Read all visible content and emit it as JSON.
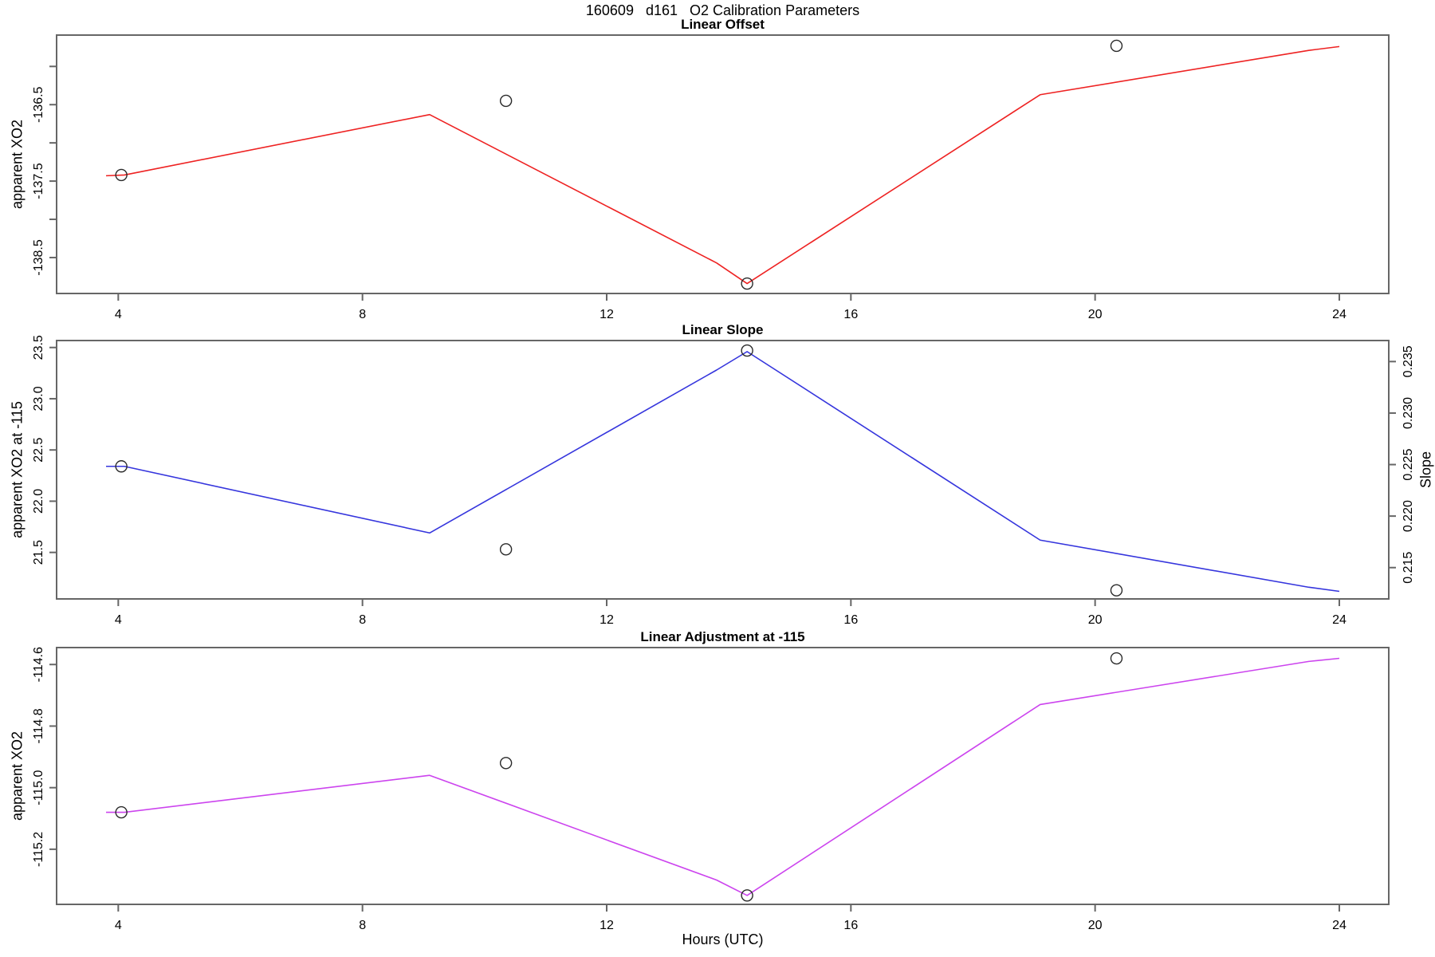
{
  "header": {
    "title": "160609   d161   O2 Calibration Parameters"
  },
  "xaxis": {
    "label": "Hours (UTC)",
    "xlim": [
      2.99,
      24.81
    ],
    "ticks": [
      4,
      8,
      12,
      16,
      20,
      24
    ],
    "tick_labels": [
      "4",
      "8",
      "12",
      "16",
      "20",
      "24"
    ]
  },
  "style": {
    "box_color": "#666666",
    "tick_color": "#666666",
    "point_color": "#2a2a2a",
    "text_color": "#000000"
  },
  "chart_data": [
    {
      "type": "line",
      "title": "Linear Offset",
      "ylabel": "apparent XO2",
      "color": "#ee2222",
      "ylim": [
        -138.97,
        -135.59
      ],
      "ytick_values": [
        -136.0,
        -136.5,
        -137.0,
        -137.5,
        -138.0,
        -138.5
      ],
      "ytick_labels": [
        "",
        "-136.5",
        "",
        "-137.5",
        "",
        "-138.5"
      ],
      "line": {
        "x": [
          3.8,
          4.1,
          9.1,
          13.8,
          14.3,
          19.1,
          23.5,
          24.0
        ],
        "y": [
          -137.43,
          -137.42,
          -136.63,
          -138.57,
          -138.84,
          -136.37,
          -135.79,
          -135.74
        ]
      },
      "points": {
        "x": [
          4.05,
          10.35,
          14.3,
          20.35
        ],
        "y": [
          -137.42,
          -136.45,
          -138.84,
          -135.73
        ]
      }
    },
    {
      "type": "line",
      "title": "Linear Slope",
      "ylabel": "apparent XO2 at -115",
      "ylabel_right": "Slope",
      "color": "#3535dd",
      "ylim": [
        21.046,
        23.568
      ],
      "ytick_values": [
        21.5,
        22.0,
        22.5,
        23.0,
        23.5
      ],
      "ytick_labels": [
        "21.5",
        "22.0",
        "22.5",
        "23.0",
        "23.5"
      ],
      "right_axis": {
        "ylim": [
          0.21196,
          0.23704
        ],
        "ytick_values": [
          0.215,
          0.22,
          0.225,
          0.23,
          0.235
        ],
        "ytick_labels": [
          "0.215",
          "0.220",
          "0.225",
          "0.230",
          "0.235"
        ]
      },
      "line": {
        "x": [
          3.8,
          4.1,
          9.1,
          13.8,
          14.3,
          19.1,
          23.5,
          24.0
        ],
        "y": [
          22.34,
          22.34,
          21.69,
          23.28,
          23.46,
          21.62,
          21.16,
          21.12
        ]
      },
      "points": {
        "x": [
          4.05,
          10.35,
          14.3,
          20.35
        ],
        "y": [
          22.34,
          21.53,
          23.47,
          21.13
        ]
      }
    },
    {
      "type": "line",
      "title": "Linear Adjustment at -115",
      "ylabel": "apparent XO2",
      "color": "#cc44ee",
      "ylim": [
        -115.379,
        -114.545
      ],
      "ytick_values": [
        -115.2,
        -115.0,
        -114.8,
        -114.6
      ],
      "ytick_labels": [
        "-115.2",
        "-115.0",
        "-114.8",
        "-114.6"
      ],
      "line": {
        "x": [
          3.8,
          4.1,
          9.1,
          13.8,
          14.3,
          19.1,
          23.5,
          24.0
        ],
        "y": [
          -115.08,
          -115.08,
          -114.96,
          -115.3,
          -115.35,
          -114.73,
          -114.59,
          -114.58
        ]
      },
      "points": {
        "x": [
          4.05,
          10.35,
          14.3,
          20.35
        ],
        "y": [
          -115.08,
          -114.92,
          -115.35,
          -114.58
        ]
      }
    }
  ]
}
